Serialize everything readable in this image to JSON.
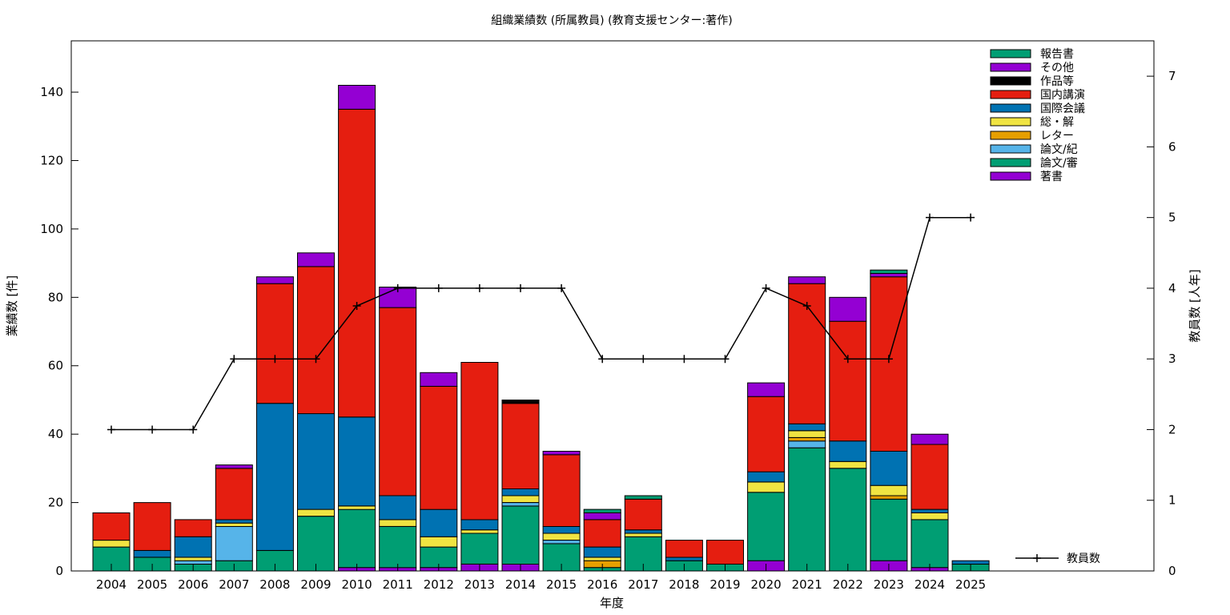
{
  "chart_data": {
    "type": "bar",
    "stacked": true,
    "title": "組織業績数 (所属教員) (教育支援センター:著作)",
    "xlabel": "年度",
    "ylabel": "業績数 [件]",
    "y2label": "教員数 [人年]",
    "ylim": [
      0,
      155
    ],
    "y2lim": [
      0,
      7.5
    ],
    "yticks": [
      0,
      20,
      40,
      60,
      80,
      100,
      120,
      140
    ],
    "y2ticks": [
      0,
      1,
      2,
      3,
      4,
      5,
      6,
      7
    ],
    "grid": false,
    "legend_position": "top-right",
    "categories": [
      "2004",
      "2005",
      "2006",
      "2007",
      "2008",
      "2009",
      "2010",
      "2011",
      "2012",
      "2013",
      "2014",
      "2015",
      "2016",
      "2017",
      "2018",
      "2019",
      "2020",
      "2021",
      "2022",
      "2023",
      "2024",
      "2025"
    ],
    "series": [
      {
        "name": "著書",
        "color": "#9400d3",
        "values": [
          0,
          0,
          0,
          0,
          0,
          0,
          1,
          1,
          1,
          2,
          2,
          0,
          0,
          0,
          0,
          0,
          3,
          0,
          0,
          3,
          1,
          0
        ]
      },
      {
        "name": "論文/審",
        "color": "#009e73",
        "values": [
          7,
          4,
          2,
          3,
          6,
          16,
          17,
          12,
          6,
          9,
          17,
          8,
          1,
          10,
          3,
          2,
          20,
          36,
          30,
          18,
          14,
          2
        ]
      },
      {
        "name": "論文/紀",
        "color": "#56b4e9",
        "values": [
          0,
          0,
          1,
          10,
          0,
          0,
          0,
          0,
          0,
          0,
          1,
          1,
          0,
          0,
          0,
          0,
          0,
          2,
          0,
          0,
          0,
          0
        ]
      },
      {
        "name": "レター",
        "color": "#e69f00",
        "values": [
          0,
          0,
          0,
          0,
          0,
          0,
          0,
          0,
          0,
          0,
          0,
          0,
          2,
          0,
          0,
          0,
          0,
          1,
          0,
          1,
          0,
          0
        ]
      },
      {
        "name": "総・解",
        "color": "#f0e442",
        "values": [
          2,
          0,
          1,
          1,
          0,
          2,
          1,
          2,
          3,
          1,
          2,
          2,
          1,
          1,
          0,
          0,
          3,
          2,
          2,
          3,
          2,
          0
        ]
      },
      {
        "name": "国際会議",
        "color": "#0072b2",
        "values": [
          0,
          2,
          6,
          1,
          43,
          28,
          26,
          7,
          8,
          3,
          2,
          2,
          3,
          1,
          1,
          0,
          3,
          2,
          6,
          10,
          1,
          1
        ]
      },
      {
        "name": "国内講演",
        "color": "#e51e10",
        "values": [
          8,
          14,
          5,
          15,
          35,
          43,
          90,
          55,
          36,
          46,
          25,
          21,
          8,
          9,
          5,
          7,
          22,
          41,
          35,
          51,
          19,
          0
        ]
      },
      {
        "name": "作品等",
        "color": "#000000",
        "values": [
          0,
          0,
          0,
          0,
          0,
          0,
          0,
          0,
          0,
          0,
          1,
          0,
          0,
          0,
          0,
          0,
          0,
          0,
          0,
          0,
          0,
          0
        ]
      },
      {
        "name": "その他",
        "color": "#9400d3",
        "values": [
          0,
          0,
          0,
          1,
          2,
          4,
          7,
          6,
          4,
          0,
          0,
          1,
          2,
          0,
          0,
          0,
          4,
          2,
          7,
          1,
          3,
          0
        ]
      },
      {
        "name": "報告書",
        "color": "#009e73",
        "values": [
          0,
          0,
          0,
          0,
          0,
          0,
          0,
          0,
          0,
          0,
          0,
          0,
          1,
          1,
          0,
          0,
          0,
          0,
          0,
          1,
          0,
          0
        ]
      }
    ],
    "legend_order": [
      "報告書",
      "その他",
      "作品等",
      "国内講演",
      "国際会議",
      "総・解",
      "レター",
      "論文/紀",
      "論文/審",
      "著書"
    ],
    "line": {
      "name": "教員数",
      "color": "#000000",
      "axis": "right",
      "values": [
        2,
        2,
        2,
        3,
        3,
        3,
        3.75,
        4,
        4,
        4,
        4,
        4,
        3,
        3,
        3,
        3,
        4,
        3.75,
        3,
        3,
        5,
        5
      ]
    }
  }
}
